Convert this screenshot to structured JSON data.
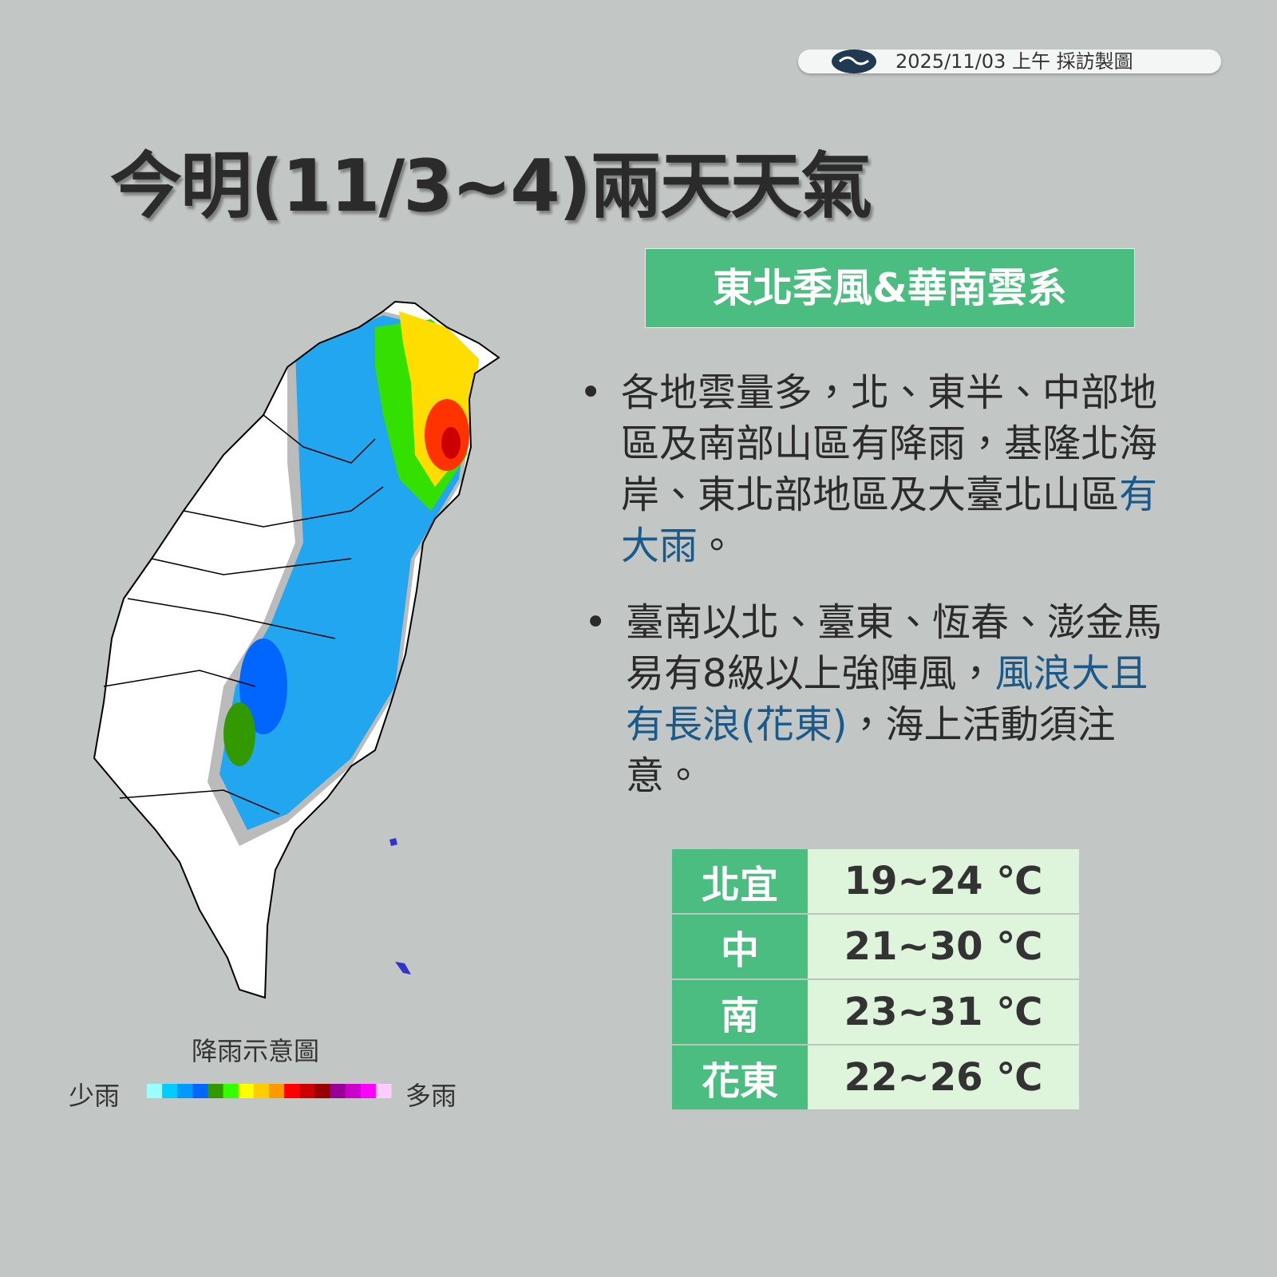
{
  "header": {
    "date": "2025/11/03 上午 採訪製圖"
  },
  "title": "今明(11/3~4)兩天天氣",
  "banner": "東北季風&華南雲系",
  "bullets": [
    {
      "text": "各地雲量多，北、東半、中部地區及南部山區有降雨，基隆北海岸、東北部地區及大臺北山區",
      "highlight": "有大雨",
      "end": "。"
    },
    {
      "text": "臺南以北、臺東、恆春、澎金馬易有8級以上強陣風，",
      "highlight": "風浪大且有長浪(花東)",
      "end": "，海上活動須注意。"
    }
  ],
  "table": {
    "rows": [
      [
        "北宜",
        "19~24 ℃"
      ],
      [
        "中",
        "21~30 ℃"
      ],
      [
        "南",
        "23~31 ℃"
      ],
      [
        "花東",
        "22~26 ℃"
      ]
    ]
  },
  "legend": {
    "title": "降雨示意圖",
    "low": "少雨",
    "high": "多雨",
    "colors": [
      "#99ffff",
      "#00ccff",
      "#0099ff",
      "#0066ff",
      "#339900",
      "#33ff00",
      "#ffff00",
      "#ffcc00",
      "#ff9900",
      "#ff0000",
      "#cc0000",
      "#990000",
      "#990099",
      "#cc00cc",
      "#ff00ff",
      "#ffccff"
    ]
  }
}
